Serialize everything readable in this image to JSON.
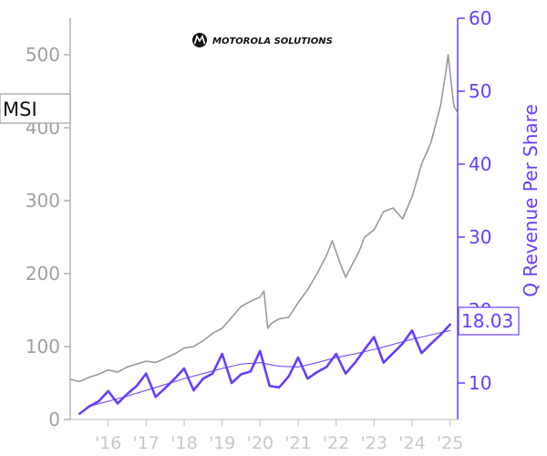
{
  "chart_data": {
    "type": "line",
    "brand": "MOTOROLA SOLUTIONS",
    "ticker": "MSI",
    "price_axis": {
      "ylim": [
        0,
        550
      ],
      "ticks": [
        0,
        100,
        200,
        300,
        400,
        500
      ],
      "tick_labels": [
        "0",
        "100",
        "200",
        "300",
        "400",
        "500"
      ]
    },
    "revenue_axis": {
      "label": "Q Revenue Per Share",
      "ylim": [
        5,
        60
      ],
      "ticks": [
        10,
        20,
        30,
        40,
        50,
        60
      ],
      "tick_labels": [
        "10",
        "20",
        "30",
        "40",
        "50",
        "60"
      ]
    },
    "x_axis": {
      "xlim": [
        2015.0,
        2025.2
      ],
      "ticks": [
        2016,
        2017,
        2018,
        2019,
        2020,
        2021,
        2022,
        2023,
        2024,
        2025
      ],
      "tick_labels": [
        "'16",
        "'17",
        "'18",
        "'19",
        "'20",
        "'21",
        "'22",
        "'23",
        "'24",
        "'25"
      ]
    },
    "latest_value_label": "18.03",
    "series": [
      {
        "name": "MSI",
        "axis": "price",
        "color": "#999999",
        "x": [
          2015.0,
          2015.25,
          2015.5,
          2015.75,
          2016.0,
          2016.25,
          2016.5,
          2016.75,
          2017.0,
          2017.25,
          2017.5,
          2017.75,
          2018.0,
          2018.25,
          2018.5,
          2018.75,
          2019.0,
          2019.25,
          2019.5,
          2019.75,
          2020.0,
          2020.1,
          2020.2,
          2020.3,
          2020.5,
          2020.75,
          2021.0,
          2021.25,
          2021.5,
          2021.75,
          2021.9,
          2022.1,
          2022.25,
          2022.45,
          2022.6,
          2022.75,
          2023.0,
          2023.25,
          2023.5,
          2023.75,
          2024.0,
          2024.25,
          2024.5,
          2024.75,
          2024.9,
          2024.95,
          2025.0,
          2025.1,
          2025.2
        ],
        "y": [
          55,
          52,
          58,
          62,
          68,
          65,
          72,
          76,
          80,
          78,
          84,
          90,
          98,
          100,
          108,
          118,
          125,
          140,
          155,
          162,
          168,
          176,
          125,
          132,
          138,
          140,
          160,
          178,
          200,
          225,
          245,
          215,
          195,
          215,
          230,
          250,
          260,
          285,
          290,
          275,
          305,
          350,
          380,
          430,
          480,
          500,
          475,
          430,
          420
        ]
      },
      {
        "name": "Q Revenue Per Share",
        "axis": "revenue",
        "color": "#6a3cff",
        "x": [
          2015.25,
          2015.5,
          2015.75,
          2016.0,
          2016.25,
          2016.5,
          2016.75,
          2017.0,
          2017.25,
          2017.5,
          2017.75,
          2018.0,
          2018.25,
          2018.5,
          2018.75,
          2019.0,
          2019.25,
          2019.5,
          2019.75,
          2020.0,
          2020.25,
          2020.5,
          2020.75,
          2021.0,
          2021.25,
          2021.5,
          2021.75,
          2022.0,
          2022.25,
          2022.5,
          2022.75,
          2023.0,
          2023.25,
          2023.5,
          2023.75,
          2024.0,
          2024.25,
          2024.5,
          2024.75,
          2025.0
        ],
        "y": [
          5.8,
          6.8,
          7.5,
          8.9,
          7.2,
          8.5,
          9.6,
          11.3,
          8.1,
          9.3,
          10.6,
          12.0,
          9.0,
          10.6,
          11.3,
          14.0,
          10.0,
          11.2,
          11.6,
          14.4,
          9.6,
          9.4,
          10.9,
          13.5,
          10.6,
          11.5,
          12.2,
          14.0,
          11.3,
          12.8,
          14.6,
          16.3,
          12.8,
          14.1,
          15.4,
          17.2,
          14.1,
          15.4,
          16.6,
          18.03
        ]
      },
      {
        "name": "Trend",
        "axis": "revenue",
        "color": "#6a3cff",
        "x": [
          2015.5,
          2016.0,
          2016.5,
          2017.0,
          2017.5,
          2018.0,
          2018.5,
          2019.0,
          2019.5,
          2020.0,
          2020.5,
          2021.0,
          2021.5,
          2022.0,
          2022.5,
          2023.0,
          2023.5,
          2024.0,
          2024.5,
          2025.0
        ],
        "y": [
          6.8,
          7.5,
          8.2,
          9.0,
          9.8,
          10.6,
          11.3,
          12.0,
          12.6,
          12.8,
          12.3,
          12.2,
          12.8,
          13.5,
          14.0,
          14.6,
          15.3,
          16.0,
          16.6,
          17.2
        ]
      }
    ]
  }
}
